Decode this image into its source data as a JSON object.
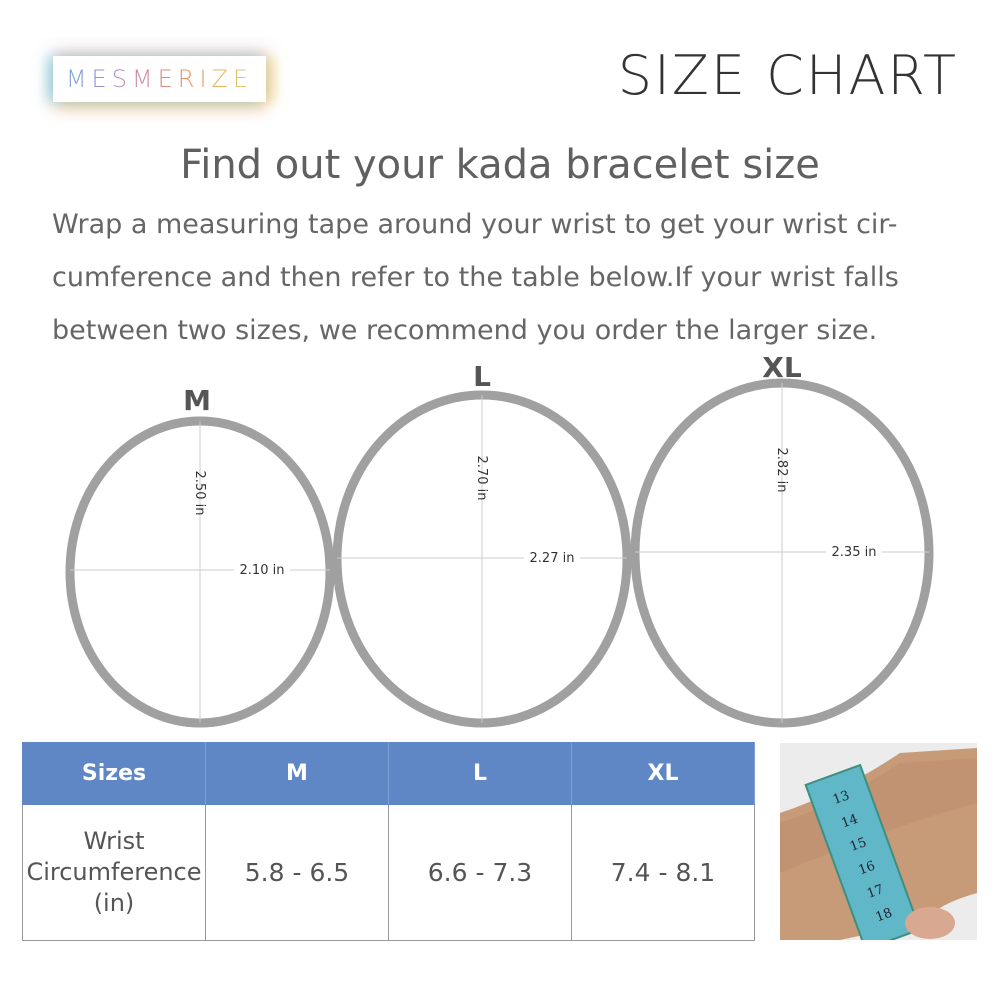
{
  "brand": {
    "logo_text": "MESMERIZE"
  },
  "header": {
    "title": "SIZE CHART"
  },
  "intro": {
    "heading": "Find out your kada bracelet size",
    "description": "Wrap a measuring tape around your wrist to get your wrist cir-cumference and then refer to the table below.If your wrist falls between two sizes, we recommend you order the larger size."
  },
  "rings": [
    {
      "size": "M",
      "height": "2.50 in",
      "width": "2.10 in"
    },
    {
      "size": "L",
      "height": "2.70 in",
      "width": "2.27 in"
    },
    {
      "size": "XL",
      "height": "2.82 in",
      "width": "2.35 in"
    }
  ],
  "colors": {
    "ring": "#a0a0a0",
    "table_header": "#5f87c6"
  },
  "table": {
    "headers": [
      "Sizes",
      "M",
      "L",
      "XL"
    ],
    "row_label": [
      "Wrist",
      "Circumference",
      "(in)"
    ],
    "values": [
      "5.8 - 6.5",
      "6.6 - 7.3",
      "7.4 - 8.1"
    ]
  },
  "photo": {
    "tape_numbers": [
      "13",
      "14",
      "15",
      "16",
      "17",
      "18"
    ]
  }
}
